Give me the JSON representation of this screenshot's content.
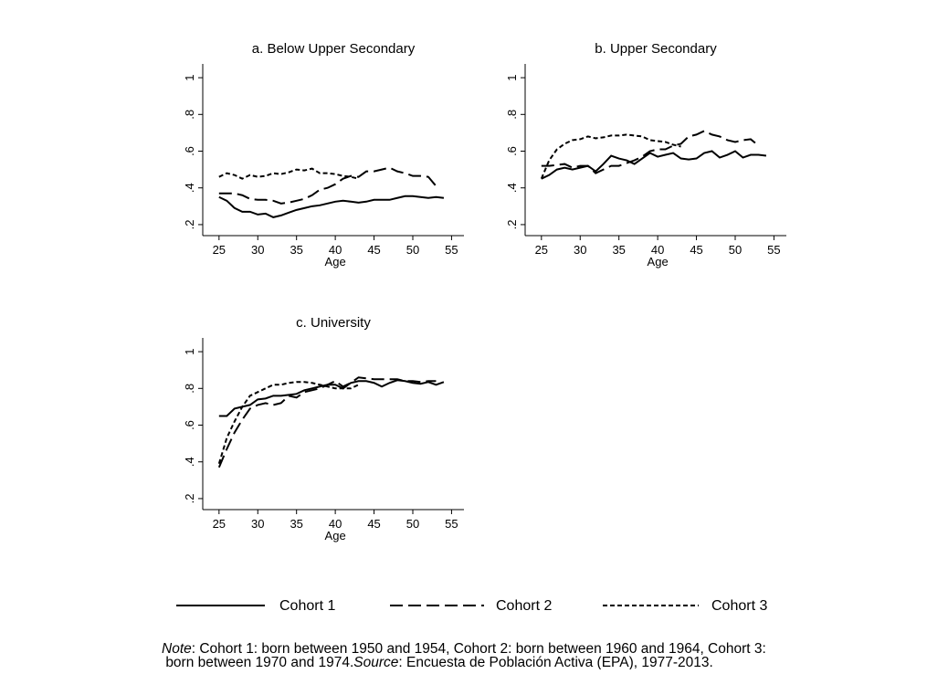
{
  "chart_data": [
    {
      "type": "line",
      "title": "a. Below Upper Secondary",
      "xlabel": "Age",
      "xlim": [
        22.9,
        56.6
      ],
      "ylim": [
        0.14,
        1.075
      ],
      "xticks": [
        25,
        30,
        35,
        40,
        45,
        50,
        55
      ],
      "yticks": [
        {
          "value": 0.2,
          "label": ".2"
        },
        {
          "value": 0.4,
          "label": ".4"
        },
        {
          "value": 0.6,
          "label": ".6"
        },
        {
          "value": 0.8,
          "label": ".8"
        },
        1
      ],
      "series": [
        {
          "name": "Cohort 1",
          "color": "#000000",
          "dash": "solid",
          "x": [
            25,
            26,
            27,
            28,
            29,
            30,
            31,
            32,
            33,
            34,
            35,
            36,
            37,
            38,
            39,
            40,
            41,
            42,
            43,
            44,
            45,
            46,
            47,
            48,
            49,
            50,
            51,
            52,
            53,
            54
          ],
          "values": [
            0.35,
            0.33,
            0.29,
            0.27,
            0.27,
            0.255,
            0.26,
            0.24,
            0.25,
            0.265,
            0.28,
            0.29,
            0.3,
            0.305,
            0.315,
            0.325,
            0.33,
            0.325,
            0.32,
            0.325,
            0.335,
            0.335,
            0.335,
            0.345,
            0.355,
            0.355,
            0.35,
            0.345,
            0.35,
            0.345
          ]
        },
        {
          "name": "Cohort 2",
          "color": "#000000",
          "dash": "long",
          "x": [
            25,
            26,
            27,
            28,
            29,
            30,
            31,
            32,
            33,
            34,
            35,
            36,
            37,
            38,
            39,
            40,
            41,
            42,
            43,
            44,
            45,
            46,
            47,
            48,
            49,
            50,
            51,
            52,
            53
          ],
          "values": [
            0.37,
            0.37,
            0.37,
            0.36,
            0.34,
            0.335,
            0.335,
            0.33,
            0.315,
            0.32,
            0.33,
            0.34,
            0.36,
            0.39,
            0.4,
            0.42,
            0.45,
            0.465,
            0.46,
            0.49,
            0.49,
            0.5,
            0.51,
            0.49,
            0.48,
            0.465,
            0.465,
            0.46,
            0.41
          ]
        },
        {
          "name": "Cohort 3",
          "color": "#000000",
          "dash": "short",
          "x": [
            25,
            26,
            27,
            28,
            29,
            30,
            31,
            32,
            33,
            34,
            35,
            36,
            37,
            38,
            39,
            40,
            41,
            42,
            43
          ],
          "values": [
            0.46,
            0.48,
            0.47,
            0.45,
            0.47,
            0.46,
            0.465,
            0.48,
            0.475,
            0.485,
            0.5,
            0.495,
            0.505,
            0.48,
            0.48,
            0.475,
            0.465,
            0.46,
            0.45
          ]
        }
      ]
    },
    {
      "type": "line",
      "title": "b. Upper Secondary",
      "xlabel": "Age",
      "xlim": [
        22.9,
        56.6
      ],
      "ylim": [
        0.14,
        1.075
      ],
      "xticks": [
        25,
        30,
        35,
        40,
        45,
        50,
        55
      ],
      "yticks": [
        {
          "value": 0.2,
          "label": ".2"
        },
        {
          "value": 0.4,
          "label": ".4"
        },
        {
          "value": 0.6,
          "label": ".6"
        },
        {
          "value": 0.8,
          "label": ".8"
        },
        1
      ],
      "series": [
        {
          "color": "#000000",
          "dash": "solid",
          "x": [
            25,
            26,
            27,
            28,
            29,
            30,
            31,
            32,
            33,
            34,
            35,
            36,
            37,
            38,
            39,
            40,
            41,
            42,
            43,
            44,
            45,
            46,
            47,
            48,
            49,
            50,
            51,
            52,
            53,
            54
          ],
          "values": [
            0.45,
            0.47,
            0.5,
            0.51,
            0.5,
            0.51,
            0.52,
            0.49,
            0.53,
            0.575,
            0.56,
            0.55,
            0.53,
            0.56,
            0.59,
            0.57,
            0.58,
            0.59,
            0.56,
            0.555,
            0.56,
            0.59,
            0.6,
            0.565,
            0.58,
            0.6,
            0.565,
            0.58,
            0.58,
            0.575
          ]
        },
        {
          "color": "#000000",
          "dash": "long",
          "x": [
            25,
            26,
            27,
            28,
            29,
            30,
            31,
            32,
            33,
            34,
            35,
            36,
            37,
            38,
            39,
            40,
            41,
            42,
            43,
            44,
            45,
            46,
            47,
            48,
            49,
            50,
            51,
            52,
            53
          ],
          "values": [
            0.52,
            0.52,
            0.525,
            0.53,
            0.51,
            0.52,
            0.52,
            0.48,
            0.5,
            0.52,
            0.52,
            0.535,
            0.55,
            0.57,
            0.6,
            0.61,
            0.61,
            0.63,
            0.64,
            0.68,
            0.69,
            0.71,
            0.69,
            0.68,
            0.66,
            0.65,
            0.66,
            0.665,
            0.63
          ]
        },
        {
          "color": "#000000",
          "dash": "short",
          "x": [
            25,
            26,
            27,
            28,
            29,
            30,
            31,
            32,
            33,
            34,
            35,
            36,
            37,
            38,
            39,
            40,
            41,
            42,
            43
          ],
          "values": [
            0.45,
            0.55,
            0.61,
            0.64,
            0.66,
            0.665,
            0.68,
            0.67,
            0.675,
            0.685,
            0.685,
            0.69,
            0.685,
            0.68,
            0.66,
            0.655,
            0.65,
            0.635,
            0.625
          ]
        }
      ]
    },
    {
      "type": "line",
      "title": "c. University",
      "xlabel": "Age",
      "xlim": [
        22.9,
        56.6
      ],
      "ylim": [
        0.14,
        1.075
      ],
      "xticks": [
        25,
        30,
        35,
        40,
        45,
        50,
        55
      ],
      "yticks": [
        {
          "value": 0.2,
          "label": ".2"
        },
        {
          "value": 0.4,
          "label": ".4"
        },
        {
          "value": 0.6,
          "label": ".6"
        },
        {
          "value": 0.8,
          "label": ".8"
        },
        1
      ],
      "series": [
        {
          "color": "#000000",
          "dash": "solid",
          "x": [
            25,
            26,
            27,
            28,
            29,
            30,
            31,
            32,
            33,
            34,
            35,
            36,
            37,
            38,
            39,
            40,
            41,
            42,
            43,
            44,
            45,
            46,
            47,
            48,
            49,
            50,
            51,
            52,
            53,
            54
          ],
          "values": [
            0.65,
            0.65,
            0.69,
            0.7,
            0.71,
            0.74,
            0.745,
            0.76,
            0.76,
            0.765,
            0.77,
            0.79,
            0.8,
            0.81,
            0.82,
            0.82,
            0.8,
            0.83,
            0.84,
            0.84,
            0.83,
            0.81,
            0.83,
            0.845,
            0.84,
            0.83,
            0.825,
            0.835,
            0.82,
            0.835
          ]
        },
        {
          "color": "#000000",
          "dash": "long",
          "x": [
            25,
            26,
            27,
            28,
            29,
            30,
            31,
            32,
            33,
            34,
            35,
            36,
            37,
            38,
            39,
            40,
            41,
            42,
            43,
            44,
            45,
            46,
            47,
            48,
            49,
            50,
            51,
            52,
            53
          ],
          "values": [
            0.37,
            0.47,
            0.56,
            0.63,
            0.69,
            0.71,
            0.72,
            0.71,
            0.72,
            0.76,
            0.75,
            0.78,
            0.79,
            0.8,
            0.82,
            0.84,
            0.81,
            0.83,
            0.86,
            0.855,
            0.85,
            0.85,
            0.85,
            0.85,
            0.84,
            0.84,
            0.835,
            0.84,
            0.84
          ]
        },
        {
          "color": "#000000",
          "dash": "short",
          "x": [
            25,
            26,
            27,
            28,
            29,
            30,
            31,
            32,
            33,
            34,
            35,
            36,
            37,
            38,
            39,
            40,
            41,
            42,
            43
          ],
          "values": [
            0.39,
            0.53,
            0.62,
            0.7,
            0.76,
            0.78,
            0.8,
            0.82,
            0.82,
            0.83,
            0.835,
            0.835,
            0.83,
            0.82,
            0.81,
            0.8,
            0.8,
            0.8,
            0.82
          ]
        }
      ]
    }
  ],
  "note": {
    "label": "Note",
    "text": ": Cohort 1: born between 1950 and 1954, Cohort 2: born between 1960 and 1964, Cohort 3:",
    "line2": "born between 1970 and 1974.",
    "source_label": "Source",
    "source_text": ": Encuesta de Población Activa (EPA), 1977-2013."
  }
}
